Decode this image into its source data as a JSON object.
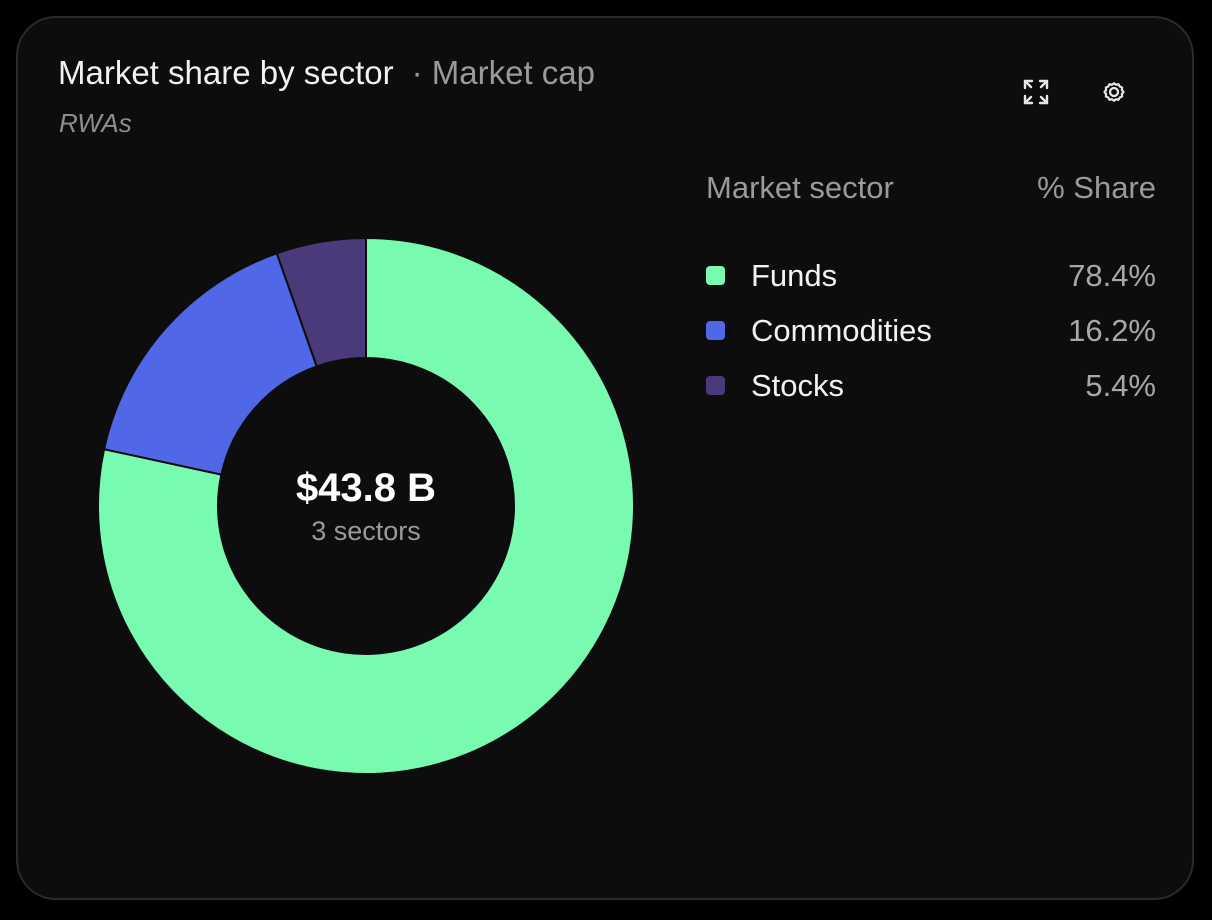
{
  "card": {
    "title": "Market share by sector",
    "subtitle": "· Market cap",
    "tag": "RWAs"
  },
  "toolbar": {
    "expand_icon": "expand-icon",
    "settings_icon": "gear-icon"
  },
  "center": {
    "total": "$43.8 B",
    "sectors_label": "3 sectors"
  },
  "legend": {
    "header_sector": "Market sector",
    "header_share": "% Share",
    "rows": [
      {
        "name": "Funds",
        "share": "78.4%",
        "color": "#78fab1"
      },
      {
        "name": "Commodities",
        "share": "16.2%",
        "color": "#5068e8"
      },
      {
        "name": "Stocks",
        "share": "5.4%",
        "color": "#4a3a7a"
      }
    ]
  },
  "chart_data": {
    "type": "pie",
    "title": "Market share by sector",
    "categories": [
      "Funds",
      "Commodities",
      "Stocks"
    ],
    "values": [
      78.4,
      16.2,
      5.4
    ],
    "colors": [
      "#78fab1",
      "#5068e8",
      "#4a3a7a"
    ],
    "donut": true,
    "center_value": "$43.8 B",
    "center_label": "3 sectors",
    "legend_placement": "right"
  }
}
